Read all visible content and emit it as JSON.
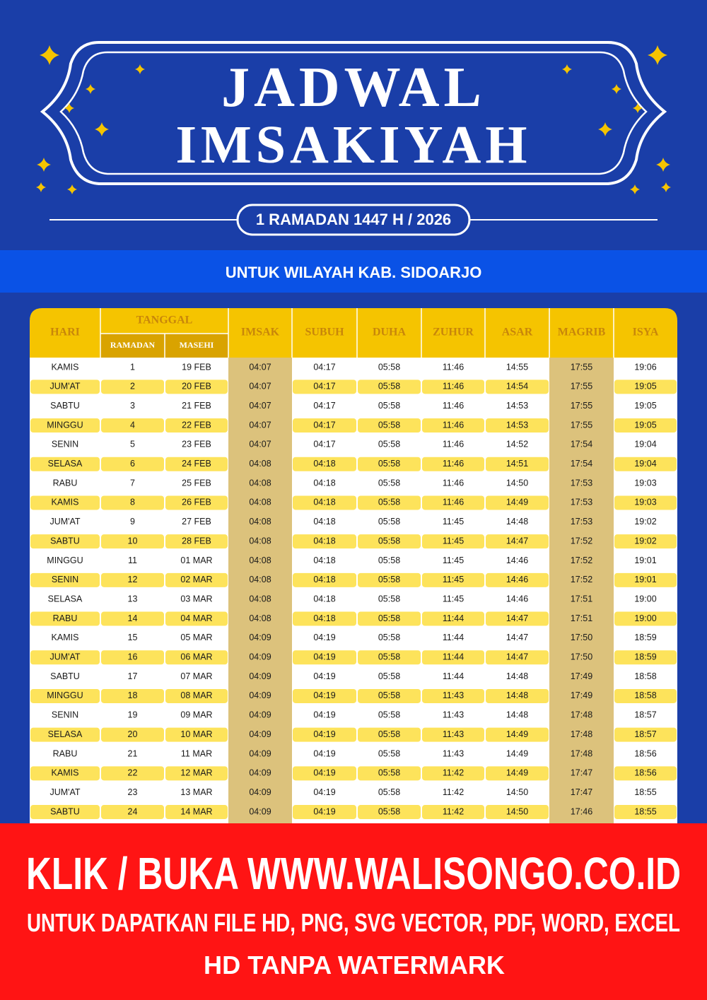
{
  "header": {
    "title_lines": [
      "JADWAL",
      "IMSAKIYAH"
    ],
    "subtitle": "1 RAMADAN 1447 H / 2026",
    "region": "UNTUK WILAYAH KAB. SIDOARJO"
  },
  "table": {
    "columns": [
      "HARI",
      "TANGGAL",
      "IMSAK",
      "SUBUH",
      "DUHA",
      "ZUHUR",
      "ASAR",
      "MAGRIB",
      "ISYA"
    ],
    "subcolumns": [
      "RAMADAN",
      "MASEHI"
    ],
    "rows": [
      [
        "KAMIS",
        "1",
        "19 FEB",
        "04:07",
        "04:17",
        "05:58",
        "11:46",
        "14:55",
        "17:55",
        "19:06"
      ],
      [
        "JUM'AT",
        "2",
        "20 FEB",
        "04:07",
        "04:17",
        "05:58",
        "11:46",
        "14:54",
        "17:55",
        "19:05"
      ],
      [
        "SABTU",
        "3",
        "21 FEB",
        "04:07",
        "04:17",
        "05:58",
        "11:46",
        "14:53",
        "17:55",
        "19:05"
      ],
      [
        "MINGGU",
        "4",
        "22 FEB",
        "04:07",
        "04:17",
        "05:58",
        "11:46",
        "14:53",
        "17:55",
        "19:05"
      ],
      [
        "SENIN",
        "5",
        "23 FEB",
        "04:07",
        "04:17",
        "05:58",
        "11:46",
        "14:52",
        "17:54",
        "19:04"
      ],
      [
        "SELASA",
        "6",
        "24 FEB",
        "04:08",
        "04:18",
        "05:58",
        "11:46",
        "14:51",
        "17:54",
        "19:04"
      ],
      [
        "RABU",
        "7",
        "25 FEB",
        "04:08",
        "04:18",
        "05:58",
        "11:46",
        "14:50",
        "17:53",
        "19:03"
      ],
      [
        "KAMIS",
        "8",
        "26 FEB",
        "04:08",
        "04:18",
        "05:58",
        "11:46",
        "14:49",
        "17:53",
        "19:03"
      ],
      [
        "JUM'AT",
        "9",
        "27 FEB",
        "04:08",
        "04:18",
        "05:58",
        "11:45",
        "14:48",
        "17:53",
        "19:02"
      ],
      [
        "SABTU",
        "10",
        "28 FEB",
        "04:08",
        "04:18",
        "05:58",
        "11:45",
        "14:47",
        "17:52",
        "19:02"
      ],
      [
        "MINGGU",
        "11",
        "01 MAR",
        "04:08",
        "04:18",
        "05:58",
        "11:45",
        "14:46",
        "17:52",
        "19:01"
      ],
      [
        "SENIN",
        "12",
        "02 MAR",
        "04:08",
        "04:18",
        "05:58",
        "11:45",
        "14:46",
        "17:52",
        "19:01"
      ],
      [
        "SELASA",
        "13",
        "03 MAR",
        "04:08",
        "04:18",
        "05:58",
        "11:45",
        "14:46",
        "17:51",
        "19:00"
      ],
      [
        "RABU",
        "14",
        "04 MAR",
        "04:08",
        "04:18",
        "05:58",
        "11:44",
        "14:47",
        "17:51",
        "19:00"
      ],
      [
        "KAMIS",
        "15",
        "05 MAR",
        "04:09",
        "04:19",
        "05:58",
        "11:44",
        "14:47",
        "17:50",
        "18:59"
      ],
      [
        "JUM'AT",
        "16",
        "06 MAR",
        "04:09",
        "04:19",
        "05:58",
        "11:44",
        "14:47",
        "17:50",
        "18:59"
      ],
      [
        "SABTU",
        "17",
        "07 MAR",
        "04:09",
        "04:19",
        "05:58",
        "11:44",
        "14:48",
        "17:49",
        "18:58"
      ],
      [
        "MINGGU",
        "18",
        "08 MAR",
        "04:09",
        "04:19",
        "05:58",
        "11:43",
        "14:48",
        "17:49",
        "18:58"
      ],
      [
        "SENIN",
        "19",
        "09 MAR",
        "04:09",
        "04:19",
        "05:58",
        "11:43",
        "14:48",
        "17:48",
        "18:57"
      ],
      [
        "SELASA",
        "20",
        "10 MAR",
        "04:09",
        "04:19",
        "05:58",
        "11:43",
        "14:49",
        "17:48",
        "18:57"
      ],
      [
        "RABU",
        "21",
        "11 MAR",
        "04:09",
        "04:19",
        "05:58",
        "11:43",
        "14:49",
        "17:48",
        "18:56"
      ],
      [
        "KAMIS",
        "22",
        "12 MAR",
        "04:09",
        "04:19",
        "05:58",
        "11:42",
        "14:49",
        "17:47",
        "18:56"
      ],
      [
        "JUM'AT",
        "23",
        "13 MAR",
        "04:09",
        "04:19",
        "05:58",
        "11:42",
        "14:50",
        "17:47",
        "18:55"
      ],
      [
        "SABTU",
        "24",
        "14 MAR",
        "04:09",
        "04:19",
        "05:58",
        "11:42",
        "14:50",
        "17:46",
        "18:55"
      ]
    ]
  },
  "footer": {
    "lines": [
      "KLIK / BUKA WWW.WALISONGO.CO.ID",
      "UNTUK DAPATKAN FILE HD, PNG, SVG VECTOR, PDF, WORD, EXCEL",
      "HD TANPA WATERMARK"
    ]
  }
}
